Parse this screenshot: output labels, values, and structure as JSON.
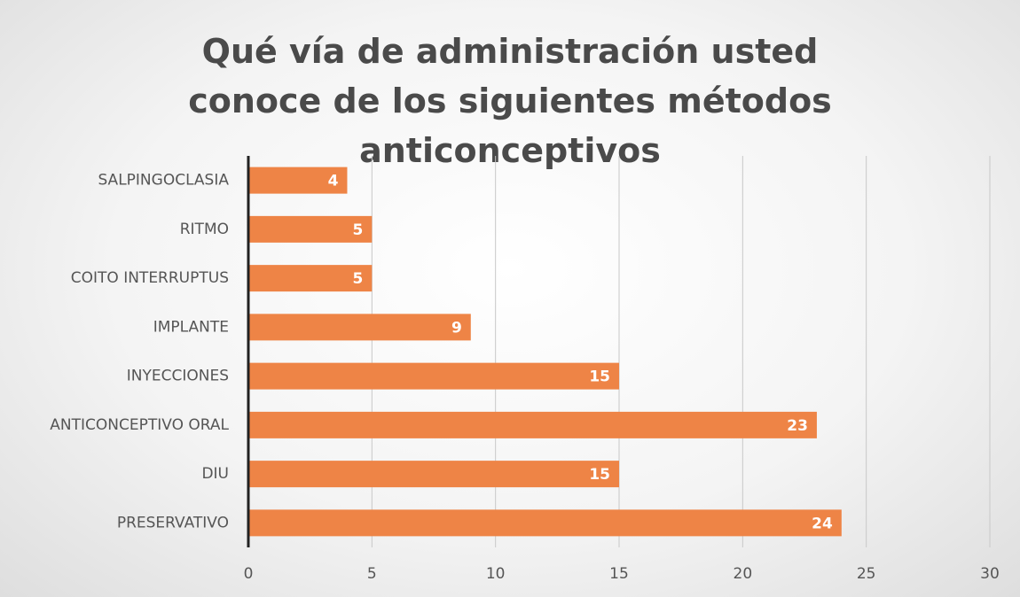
{
  "chart_data": {
    "type": "bar",
    "orientation": "horizontal",
    "title": "Qué vía de administración usted conoce de los siguientes métodos anticonceptivos",
    "categories": [
      "SALPINGOCLASIA",
      "RITMO",
      "COITO INTERRUPTUS",
      "IMPLANTE",
      "INYECCIONES",
      "ANTICONCEPTIVO ORAL",
      "DIU",
      "PRESERVATIVO"
    ],
    "values": [
      4,
      5,
      5,
      9,
      15,
      23,
      15,
      24
    ],
    "color": "#ee8446",
    "xlim": [
      0,
      30
    ],
    "xticks": [
      0,
      5,
      10,
      15,
      20,
      25,
      30
    ],
    "grid": true
  }
}
